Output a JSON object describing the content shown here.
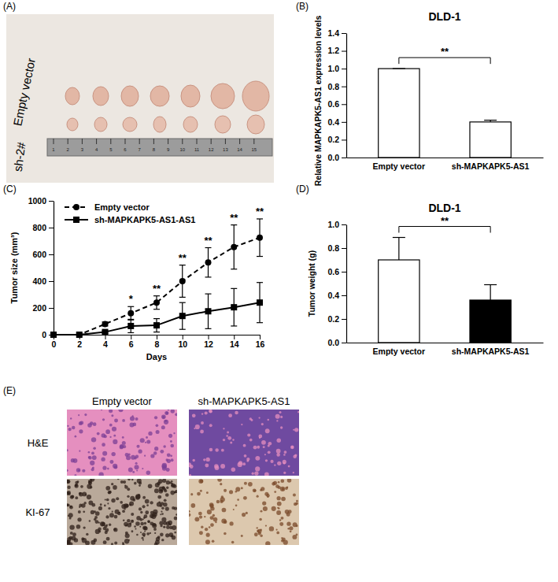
{
  "chart_data": [
    {
      "type": "bar",
      "panel": "(B)",
      "title": "DLD-1",
      "y_label": "Relative MAPKAPK5-AS1 expression levels",
      "categories": [
        "Empty vector",
        "sh-MAPKAPK5-AS1"
      ],
      "values": [
        1.0,
        0.4
      ],
      "errors": [
        0,
        0.02
      ],
      "colors": [
        "#ffffff",
        "#ffffff"
      ],
      "ylim": [
        0,
        1.4
      ],
      "yticks": [
        {
          "value": 0,
          "label": "0.0"
        },
        0.2,
        0.4,
        0.6,
        0.8,
        {
          "value": 1,
          "label": "1.0"
        },
        1.2,
        1.4
      ],
      "annotations": [
        "**"
      ]
    },
    {
      "type": "line",
      "panel": "(C)",
      "x_label": "Days",
      "y_label": "Tumor size (mm³)",
      "x": [
        0,
        2,
        4,
        6,
        8,
        10,
        12,
        14,
        16
      ],
      "xlim": [
        0,
        16
      ],
      "xticks": [
        0,
        2,
        4,
        6,
        8,
        10,
        12,
        14,
        16
      ],
      "ylim": [
        0,
        1000
      ],
      "yticks": [
        0,
        200,
        400,
        600,
        800,
        1000
      ],
      "legend": "upper left",
      "series": [
        {
          "name": "Empty vector",
          "color": "#000000",
          "marker": "circle",
          "line_style": "dashed",
          "values": [
            0,
            0,
            80,
            160,
            240,
            400,
            540,
            655,
            725
          ],
          "errors": [
            0,
            0,
            15,
            50,
            50,
            120,
            110,
            165,
            140
          ]
        },
        {
          "name": "sh-MAPKAPK5-AS1-AS1",
          "color": "#000000",
          "marker": "square",
          "line_style": "solid",
          "values": [
            0,
            0,
            20,
            65,
            70,
            140,
            175,
            205,
            240
          ],
          "errors": [
            0,
            0,
            10,
            50,
            50,
            100,
            130,
            140,
            150
          ]
        }
      ],
      "annotations": [
        {
          "x": 6,
          "text": "*"
        },
        {
          "x": 8,
          "text": "**"
        },
        {
          "x": 10,
          "text": "**"
        },
        {
          "x": 12,
          "text": "**"
        },
        {
          "x": 14,
          "text": "**"
        },
        {
          "x": 16,
          "text": "**"
        }
      ]
    },
    {
      "type": "bar",
      "panel": "(D)",
      "title": "DLD-1",
      "y_label": "Tumor weight (g)",
      "categories": [
        "Empty vector",
        "sh-MAPKAPK5-AS1"
      ],
      "values": [
        0.7,
        0.36
      ],
      "errors": [
        0.19,
        0.13
      ],
      "colors": [
        "#ffffff",
        "#000000"
      ],
      "ylim": [
        0,
        1.0
      ],
      "yticks": [
        {
          "value": 0,
          "label": "0.0"
        },
        0.2,
        0.4,
        0.6,
        0.8,
        {
          "value": 1,
          "label": "1.0"
        }
      ],
      "annotations": [
        "**"
      ]
    }
  ],
  "panels": {
    "A": {
      "label": "(A)",
      "rows": [
        "Empty vector",
        "sh-2#"
      ],
      "ruler_ticks": [
        1,
        2,
        3,
        4,
        5,
        6,
        7,
        8,
        9,
        10,
        11,
        12,
        13,
        14,
        15
      ]
    },
    "E": {
      "label": "(E)",
      "columns": [
        "Empty vector",
        "sh-MAPKAPK5-AS1"
      ],
      "rows": [
        "H&E",
        "KI-67"
      ]
    }
  }
}
